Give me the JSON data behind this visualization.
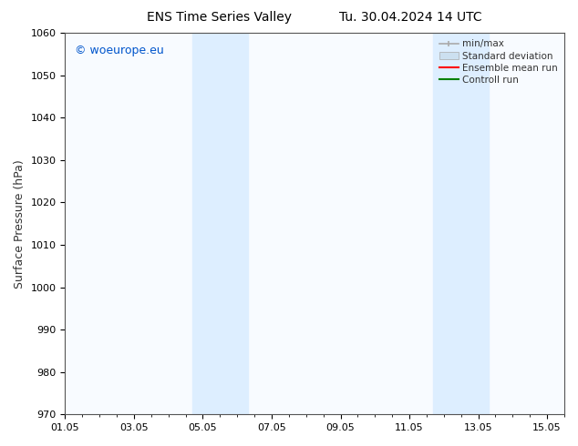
{
  "title_left": "ENS Time Series Valley",
  "title_right": "Tu. 30.04.2024 14 UTC",
  "ylabel": "Surface Pressure (hPa)",
  "ylim": [
    970,
    1060
  ],
  "yticks": [
    970,
    980,
    990,
    1000,
    1010,
    1020,
    1030,
    1040,
    1050,
    1060
  ],
  "xtick_labels": [
    "01.05",
    "03.05",
    "05.05",
    "07.05",
    "09.05",
    "11.05",
    "13.05",
    "15.05"
  ],
  "xtick_positions": [
    0,
    2,
    4,
    6,
    8,
    10,
    12,
    14
  ],
  "x_total_days": 14,
  "shaded_bands": [
    {
      "x_start": 3.7,
      "x_end": 5.3
    },
    {
      "x_start": 10.7,
      "x_end": 12.3
    }
  ],
  "shade_color": "#ddeeff",
  "watermark_text": "© woeurope.eu",
  "watermark_color": "#0055cc",
  "legend_entries": [
    {
      "label": "min/max",
      "color": "#aaaaaa",
      "lw": 1.2,
      "type": "line_ticks"
    },
    {
      "label": "Standard deviation",
      "color": "#cce0f0",
      "lw": 6,
      "type": "band"
    },
    {
      "label": "Ensemble mean run",
      "color": "red",
      "lw": 1.5,
      "type": "line"
    },
    {
      "label": "Controll run",
      "color": "green",
      "lw": 1.5,
      "type": "line"
    }
  ],
  "bg_color": "#ffffff",
  "plot_bg_color": "#f8fbff",
  "title_fontsize": 10,
  "ylabel_fontsize": 9,
  "tick_fontsize": 8,
  "legend_fontsize": 7.5,
  "watermark_fontsize": 9
}
